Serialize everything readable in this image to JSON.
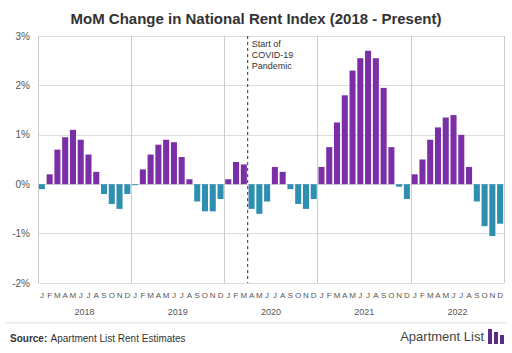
{
  "chart_data": {
    "type": "bar",
    "title": "MoM Change in National Rent Index (2018 - Present)",
    "categories": [
      "J",
      "F",
      "M",
      "A",
      "M",
      "J",
      "J",
      "A",
      "S",
      "O",
      "N",
      "D",
      "J",
      "F",
      "M",
      "A",
      "M",
      "J",
      "J",
      "A",
      "S",
      "O",
      "N",
      "D",
      "J",
      "F",
      "M",
      "A",
      "M",
      "J",
      "J",
      "A",
      "S",
      "O",
      "N",
      "D",
      "J",
      "F",
      "M",
      "A",
      "M",
      "J",
      "J",
      "A",
      "S",
      "O",
      "N",
      "D",
      "J",
      "F",
      "M",
      "A",
      "M",
      "J",
      "J",
      "A",
      "S",
      "O",
      "N",
      "D"
    ],
    "group_labels": [
      "2018",
      "2019",
      "2020",
      "2021",
      "2022"
    ],
    "values": [
      -0.1,
      0.2,
      0.7,
      0.95,
      1.1,
      0.9,
      0.6,
      0.25,
      -0.2,
      -0.4,
      -0.5,
      -0.2,
      -0.02,
      0.3,
      0.6,
      0.8,
      0.9,
      0.85,
      0.55,
      0.1,
      -0.35,
      -0.55,
      -0.55,
      -0.3,
      0.1,
      0.45,
      0.4,
      -0.5,
      -0.6,
      -0.35,
      0.35,
      0.25,
      -0.1,
      -0.4,
      -0.5,
      -0.3,
      0.35,
      0.75,
      1.25,
      1.8,
      2.3,
      2.55,
      2.7,
      2.55,
      1.95,
      0.75,
      -0.05,
      -0.3,
      0.2,
      0.5,
      0.9,
      1.15,
      1.35,
      1.4,
      1.0,
      0.35,
      -0.35,
      -0.85,
      -1.05,
      -0.8
    ],
    "colors": [
      "#2f8fb0",
      "#7b2fa6",
      "#7b2fa6",
      "#7b2fa6",
      "#7b2fa6",
      "#7b2fa6",
      "#7b2fa6",
      "#7b2fa6",
      "#2f8fb0",
      "#2f8fb0",
      "#2f8fb0",
      "#2f8fb0",
      "#2f8fb0",
      "#7b2fa6",
      "#7b2fa6",
      "#7b2fa6",
      "#7b2fa6",
      "#7b2fa6",
      "#7b2fa6",
      "#7b2fa6",
      "#2f8fb0",
      "#2f8fb0",
      "#2f8fb0",
      "#2f8fb0",
      "#7b2fa6",
      "#7b2fa6",
      "#7b2fa6",
      "#2f8fb0",
      "#2f8fb0",
      "#2f8fb0",
      "#7b2fa6",
      "#7b2fa6",
      "#2f8fb0",
      "#2f8fb0",
      "#2f8fb0",
      "#2f8fb0",
      "#7b2fa6",
      "#7b2fa6",
      "#7b2fa6",
      "#7b2fa6",
      "#7b2fa6",
      "#7b2fa6",
      "#7b2fa6",
      "#7b2fa6",
      "#7b2fa6",
      "#7b2fa6",
      "#2f8fb0",
      "#2f8fb0",
      "#7b2fa6",
      "#7b2fa6",
      "#7b2fa6",
      "#7b2fa6",
      "#7b2fa6",
      "#7b2fa6",
      "#7b2fa6",
      "#7b2fa6",
      "#2f8fb0",
      "#2f8fb0",
      "#2f8fb0",
      "#2f8fb0"
    ],
    "ylim": [
      -2,
      3
    ],
    "yticks": [
      {
        "value": -2,
        "label": "-2%"
      },
      {
        "value": -1,
        "label": "-1%"
      },
      {
        "value": 0,
        "label": "0%"
      },
      {
        "value": 1,
        "label": "1%"
      },
      {
        "value": 2,
        "label": "2%"
      },
      {
        "value": 3,
        "label": "3%"
      }
    ],
    "grid": true,
    "annotations": [
      {
        "text": "Start of\nCOVID-19\nPandemic",
        "x": 26.5,
        "line_style": "dashed"
      }
    ],
    "source_label": "Source:",
    "source": "Apartment List Rent Estimates",
    "logo": "Apartment List"
  }
}
